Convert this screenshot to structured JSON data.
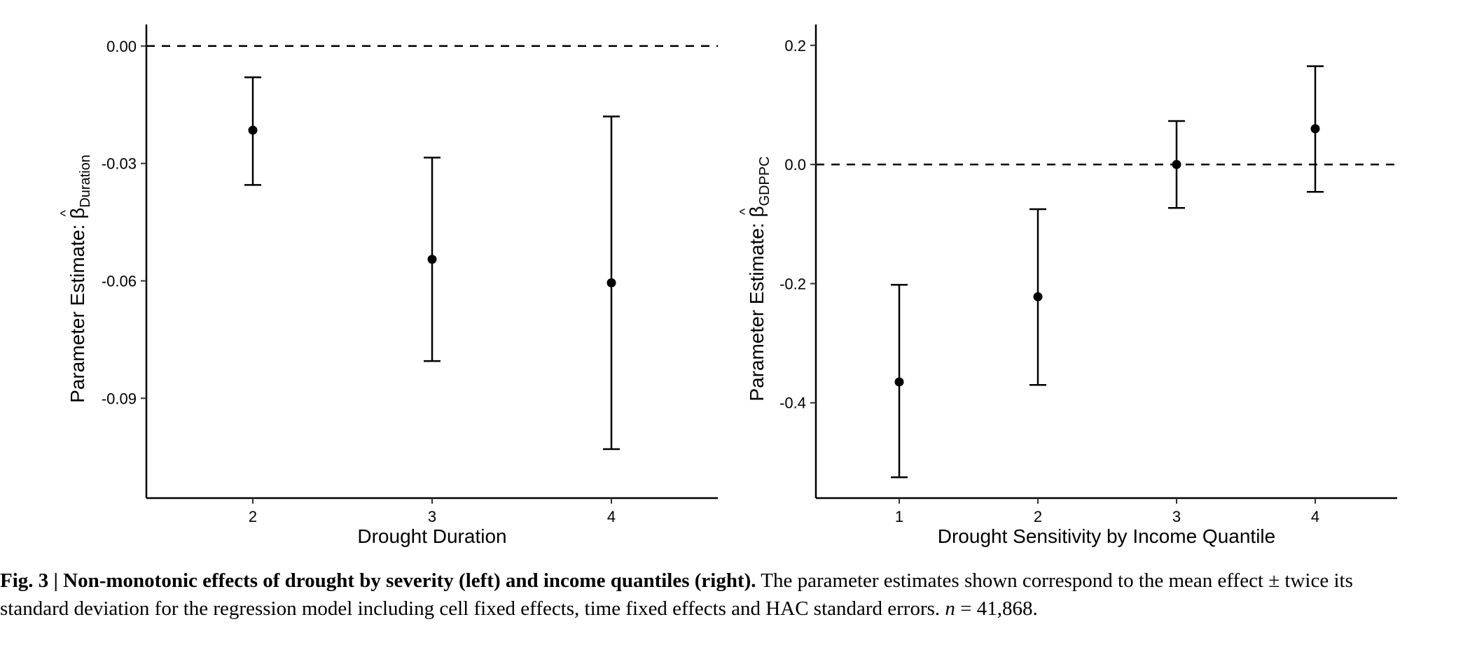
{
  "chart_data": [
    {
      "type": "scatter",
      "error_bars": true,
      "categories": [
        "2",
        "3",
        "4"
      ],
      "points": [
        {
          "x": "2",
          "y": -0.0215,
          "low": -0.0355,
          "high": -0.008
        },
        {
          "x": "3",
          "y": -0.0545,
          "low": -0.0805,
          "high": -0.0285
        },
        {
          "x": "4",
          "y": -0.0605,
          "low": -0.103,
          "high": -0.018
        }
      ],
      "ylim": [
        -0.1155,
        0.0055
      ],
      "yticks": [
        "0.00",
        "-0.03",
        "-0.06",
        "-0.09"
      ],
      "ytick_values": [
        0.0,
        -0.03,
        -0.06,
        -0.09
      ],
      "reference_line": 0,
      "xlabel": "Drought Duration",
      "ylabel_main": "Parameter Estimate: ",
      "ylabel_symbol": "β",
      "ylabel_hat": "^",
      "ylabel_sub": "Duration",
      "grid": false
    },
    {
      "type": "scatter",
      "error_bars": true,
      "categories": [
        "1",
        "2",
        "3",
        "4"
      ],
      "points": [
        {
          "x": "1",
          "y": -0.365,
          "low": -0.525,
          "high": -0.202
        },
        {
          "x": "2",
          "y": -0.222,
          "low": -0.37,
          "high": -0.075
        },
        {
          "x": "3",
          "y": 0.0,
          "low": -0.073,
          "high": 0.073
        },
        {
          "x": "4",
          "y": 0.06,
          "low": -0.046,
          "high": 0.165
        }
      ],
      "ylim": [
        -0.56,
        0.235
      ],
      "yticks": [
        "0.2",
        "0.0",
        "-0.2",
        "-0.4"
      ],
      "ytick_values": [
        0.2,
        0.0,
        -0.2,
        -0.4
      ],
      "reference_line": 0,
      "xlabel": "Drought Sensitivity by Income Quantile",
      "ylabel_main": "Parameter Estimate: ",
      "ylabel_symbol": "β",
      "ylabel_hat": "^",
      "ylabel_sub": "GDPPC",
      "grid": false
    }
  ],
  "caption": {
    "bold": "Fig. 3 | Non-monotonic effects of drought by severity (left) and income quantiles (right).",
    "text_line1": " The parameter estimates shown correspond to the mean effect ± twice its",
    "text_line2": "standard deviation for the regression model including cell fixed effects, time fixed effects and HAC standard errors. ",
    "n_symbol": "n",
    "n_value": " = 41,868."
  },
  "colors": {
    "ink": "#000000",
    "tick_text": "#333333"
  }
}
